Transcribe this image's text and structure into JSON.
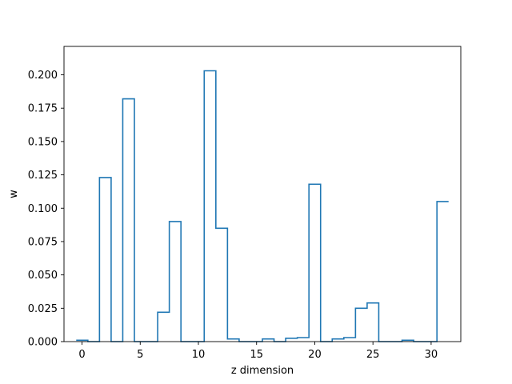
{
  "chart_data": {
    "type": "step",
    "title": "",
    "xlabel": "z dimension",
    "ylabel": "w",
    "x": [
      0,
      1,
      2,
      3,
      4,
      5,
      6,
      7,
      8,
      9,
      10,
      11,
      12,
      13,
      14,
      15,
      16,
      17,
      18,
      19,
      20,
      21,
      22,
      23,
      24,
      25,
      26,
      27,
      28,
      29,
      30,
      31
    ],
    "values": [
      0.001,
      0.0,
      0.123,
      0.0,
      0.182,
      0.0,
      0.0,
      0.022,
      0.09,
      0.0,
      0.0,
      0.203,
      0.085,
      0.002,
      0.0,
      0.0,
      0.002,
      0.0,
      0.0025,
      0.003,
      0.118,
      0.0,
      0.002,
      0.003,
      0.025,
      0.029,
      0.0,
      0.0,
      0.001,
      0.0,
      0.0,
      0.105
    ],
    "xlim": [
      -1.55,
      32.55
    ],
    "ylim": [
      0.0,
      0.2213
    ],
    "xticks": [
      0,
      5,
      10,
      15,
      20,
      25,
      30
    ],
    "yticks": [
      0.0,
      0.025,
      0.05,
      0.075,
      0.1,
      0.125,
      0.15,
      0.175,
      0.2
    ],
    "yticklabels": [
      "0.000",
      "0.025",
      "0.050",
      "0.075",
      "0.100",
      "0.125",
      "0.150",
      "0.175",
      "0.200"
    ],
    "grid": false,
    "line_color": "#1f77b4"
  }
}
